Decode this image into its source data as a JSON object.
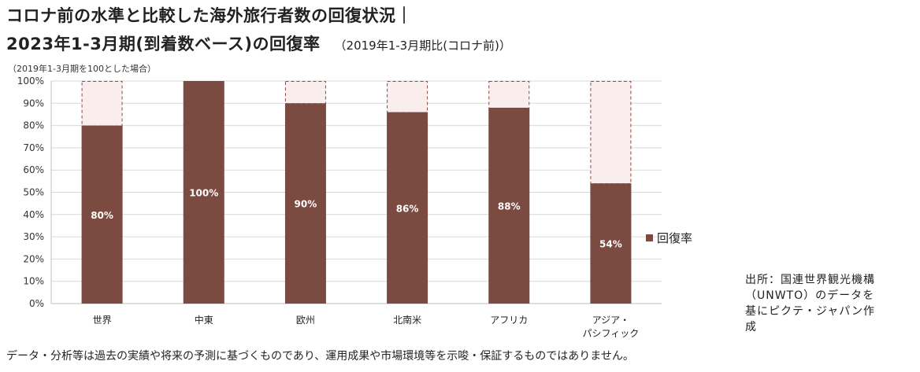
{
  "header": {
    "title_line1": "コロナ前の水準と比較した海外旅行者数の回復状況｜",
    "title_line2": "2023年1-3月期(到着数ベース)の回復率",
    "subtitle": "（2019年1-3月期比(コロナ前)）",
    "note": "（2019年1-3月期を100とした場合）"
  },
  "source_text": "出所：国連世界観光機構（UNWTO）のデータを基にピクテ・ジャパン作成",
  "disclaimer": "データ・分析等は過去の実績や将来の予測に基づくものであり、運用成果や市場環境等を示唆・保証するものではありません。",
  "colors": {
    "bar": "#7b4a40",
    "remainder_fill": "#f9eeed",
    "remainder_stroke": "#8b4a44",
    "grid": "#d9d9d9",
    "axis": "#bfbfbf"
  },
  "chart_data": {
    "type": "bar",
    "categories": [
      [
        "世界"
      ],
      [
        "中東"
      ],
      [
        "欧州"
      ],
      [
        "北南米"
      ],
      [
        "アフリカ"
      ],
      [
        "アジア・",
        "パシフィック"
      ]
    ],
    "series": [
      {
        "name": "回復率",
        "values": [
          80,
          100,
          90,
          86,
          88,
          54
        ]
      }
    ],
    "data_labels": [
      "80%",
      "100%",
      "90%",
      "86%",
      "88%",
      "54%"
    ],
    "baseline": 100,
    "ylim": [
      0,
      100
    ],
    "yticks": [
      "0%",
      "10%",
      "20%",
      "30%",
      "40%",
      "50%",
      "60%",
      "70%",
      "80%",
      "90%",
      "100%"
    ],
    "grid": true,
    "legend_position": "right"
  }
}
